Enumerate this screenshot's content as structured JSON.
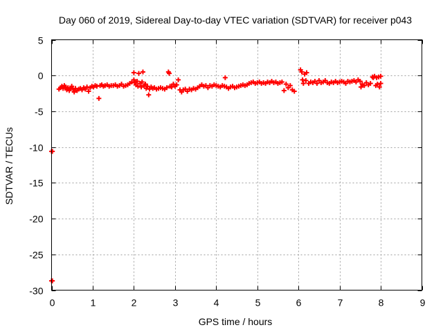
{
  "chart_data": {
    "type": "scatter",
    "title": "Day 060 of 2019, Sidereal Day-to-day VTEC variation (SDTVAR) for receiver p043",
    "xlabel": "GPS time / hours",
    "ylabel": "SDTVAR / TECUs",
    "xlim": [
      0,
      9
    ],
    "ylim": [
      -30,
      5
    ],
    "xticks": [
      0,
      1,
      2,
      3,
      4,
      5,
      6,
      7,
      8,
      9
    ],
    "yticks": [
      5,
      0,
      -5,
      -10,
      -15,
      -20,
      -25,
      -30
    ],
    "grid": true,
    "marker": "+",
    "color": "#ff0000",
    "series": [
      {
        "name": "SDTVAR",
        "points": [
          [
            0.0,
            -10.6
          ],
          [
            0.02,
            -10.6
          ],
          [
            0.0,
            -28.7
          ],
          [
            0.02,
            -28.7
          ],
          [
            0.18,
            -1.9
          ],
          [
            0.22,
            -1.7
          ],
          [
            0.25,
            -1.5
          ],
          [
            0.28,
            -1.8
          ],
          [
            0.31,
            -1.4
          ],
          [
            0.34,
            -1.6
          ],
          [
            0.37,
            -2.0
          ],
          [
            0.4,
            -1.7
          ],
          [
            0.43,
            -2.1
          ],
          [
            0.46,
            -1.8
          ],
          [
            0.49,
            -1.5
          ],
          [
            0.52,
            -1.9
          ],
          [
            0.55,
            -2.3
          ],
          [
            0.58,
            -1.8
          ],
          [
            0.62,
            -2.1
          ],
          [
            0.66,
            -1.9
          ],
          [
            0.7,
            -1.8
          ],
          [
            0.74,
            -2.0
          ],
          [
            0.78,
            -1.7
          ],
          [
            0.82,
            -1.9
          ],
          [
            0.86,
            -1.6
          ],
          [
            0.9,
            -2.2
          ],
          [
            0.94,
            -1.7
          ],
          [
            0.98,
            -1.5
          ],
          [
            1.02,
            -1.6
          ],
          [
            1.06,
            -1.4
          ],
          [
            1.1,
            -1.5
          ],
          [
            1.15,
            -3.2
          ],
          [
            1.18,
            -1.4
          ],
          [
            1.22,
            -1.3
          ],
          [
            1.26,
            -1.5
          ],
          [
            1.3,
            -1.4
          ],
          [
            1.35,
            -1.3
          ],
          [
            1.4,
            -1.5
          ],
          [
            1.45,
            -1.4
          ],
          [
            1.5,
            -1.4
          ],
          [
            1.55,
            -1.3
          ],
          [
            1.6,
            -1.5
          ],
          [
            1.65,
            -1.4
          ],
          [
            1.7,
            -1.2
          ],
          [
            1.75,
            -1.5
          ],
          [
            1.8,
            -1.4
          ],
          [
            1.85,
            -1.3
          ],
          [
            1.9,
            -1.1
          ],
          [
            1.95,
            -0.9
          ],
          [
            2.0,
            -0.6
          ],
          [
            2.0,
            0.4
          ],
          [
            2.02,
            -1.0
          ],
          [
            2.05,
            -1.3
          ],
          [
            2.08,
            -0.8
          ],
          [
            2.1,
            -1.5
          ],
          [
            2.12,
            0.3
          ],
          [
            2.15,
            -1.1
          ],
          [
            2.18,
            -1.6
          ],
          [
            2.2,
            -0.9
          ],
          [
            2.22,
            0.5
          ],
          [
            2.25,
            -1.4
          ],
          [
            2.28,
            -1.2
          ],
          [
            2.3,
            -1.8
          ],
          [
            2.33,
            -1.5
          ],
          [
            2.36,
            -2.7
          ],
          [
            2.38,
            -1.9
          ],
          [
            2.42,
            -1.6
          ],
          [
            2.46,
            -1.8
          ],
          [
            2.5,
            -1.7
          ],
          [
            2.55,
            -1.9
          ],
          [
            2.6,
            -1.8
          ],
          [
            2.65,
            -1.7
          ],
          [
            2.7,
            -1.8
          ],
          [
            2.75,
            -1.9
          ],
          [
            2.8,
            -1.7
          ],
          [
            2.84,
            0.5
          ],
          [
            2.86,
            0.3
          ],
          [
            2.88,
            -1.5
          ],
          [
            2.92,
            -1.6
          ],
          [
            2.96,
            -1.2
          ],
          [
            3.0,
            -1.5
          ],
          [
            3.04,
            -1.3
          ],
          [
            3.08,
            -0.6
          ],
          [
            3.12,
            -2.0
          ],
          [
            3.16,
            -2.3
          ],
          [
            3.2,
            -2.0
          ],
          [
            3.25,
            -1.9
          ],
          [
            3.3,
            -2.2
          ],
          [
            3.35,
            -1.9
          ],
          [
            3.4,
            -2.0
          ],
          [
            3.45,
            -1.8
          ],
          [
            3.5,
            -1.9
          ],
          [
            3.55,
            -1.7
          ],
          [
            3.6,
            -1.5
          ],
          [
            3.65,
            -1.3
          ],
          [
            3.7,
            -1.5
          ],
          [
            3.75,
            -1.4
          ],
          [
            3.8,
            -1.7
          ],
          [
            3.85,
            -1.4
          ],
          [
            3.9,
            -1.5
          ],
          [
            3.95,
            -1.3
          ],
          [
            4.0,
            -1.4
          ],
          [
            4.05,
            -1.5
          ],
          [
            4.1,
            -1.6
          ],
          [
            4.15,
            -1.4
          ],
          [
            4.2,
            -1.5
          ],
          [
            4.22,
            -0.3
          ],
          [
            4.25,
            -1.6
          ],
          [
            4.3,
            -1.8
          ],
          [
            4.35,
            -1.6
          ],
          [
            4.4,
            -1.5
          ],
          [
            4.45,
            -1.7
          ],
          [
            4.5,
            -1.6
          ],
          [
            4.55,
            -1.5
          ],
          [
            4.6,
            -1.4
          ],
          [
            4.65,
            -1.3
          ],
          [
            4.7,
            -1.4
          ],
          [
            4.75,
            -1.3
          ],
          [
            4.8,
            -1.1
          ],
          [
            4.85,
            -1.0
          ],
          [
            4.9,
            -0.9
          ],
          [
            4.95,
            -1.1
          ],
          [
            5.0,
            -1.0
          ],
          [
            5.05,
            -0.9
          ],
          [
            5.1,
            -1.1
          ],
          [
            5.15,
            -1.0
          ],
          [
            5.2,
            -1.1
          ],
          [
            5.25,
            -0.9
          ],
          [
            5.3,
            -1.0
          ],
          [
            5.35,
            -0.8
          ],
          [
            5.4,
            -1.0
          ],
          [
            5.45,
            -0.9
          ],
          [
            5.5,
            -1.1
          ],
          [
            5.55,
            -1.0
          ],
          [
            5.6,
            -0.9
          ],
          [
            5.65,
            -2.1
          ],
          [
            5.7,
            -1.2
          ],
          [
            5.75,
            -1.7
          ],
          [
            5.8,
            -1.4
          ],
          [
            5.85,
            -2.0
          ],
          [
            5.9,
            -2.2
          ],
          [
            6.05,
            0.8
          ],
          [
            6.08,
            0.5
          ],
          [
            6.1,
            -0.6
          ],
          [
            6.12,
            -1.1
          ],
          [
            6.15,
            0.2
          ],
          [
            6.18,
            -0.7
          ],
          [
            6.2,
            0.4
          ],
          [
            6.25,
            -1.1
          ],
          [
            6.3,
            -0.9
          ],
          [
            6.35,
            -1.0
          ],
          [
            6.4,
            -0.8
          ],
          [
            6.45,
            -1.1
          ],
          [
            6.5,
            -0.7
          ],
          [
            6.55,
            -1.0
          ],
          [
            6.6,
            -0.9
          ],
          [
            6.65,
            -0.7
          ],
          [
            6.7,
            -1.0
          ],
          [
            6.75,
            -1.1
          ],
          [
            6.8,
            -0.9
          ],
          [
            6.85,
            -1.0
          ],
          [
            6.9,
            -0.8
          ],
          [
            6.95,
            -1.0
          ],
          [
            7.0,
            -0.9
          ],
          [
            7.05,
            -0.8
          ],
          [
            7.1,
            -0.9
          ],
          [
            7.15,
            -1.1
          ],
          [
            7.2,
            -0.8
          ],
          [
            7.25,
            -0.9
          ],
          [
            7.3,
            -0.8
          ],
          [
            7.35,
            -0.7
          ],
          [
            7.4,
            -0.9
          ],
          [
            7.45,
            -0.6
          ],
          [
            7.5,
            -0.8
          ],
          [
            7.52,
            -1.6
          ],
          [
            7.55,
            -1.2
          ],
          [
            7.6,
            -1.4
          ],
          [
            7.65,
            -1.0
          ],
          [
            7.7,
            -1.3
          ],
          [
            7.75,
            -1.1
          ],
          [
            7.8,
            -0.2
          ],
          [
            7.82,
            -0.3
          ],
          [
            7.85,
            -0.1
          ],
          [
            7.88,
            -1.4
          ],
          [
            7.9,
            -0.3
          ],
          [
            7.92,
            -1.2
          ],
          [
            7.95,
            -0.2
          ],
          [
            7.97,
            -1.6
          ],
          [
            8.0,
            -0.1
          ],
          [
            8.0,
            -1.1
          ]
        ]
      }
    ]
  }
}
